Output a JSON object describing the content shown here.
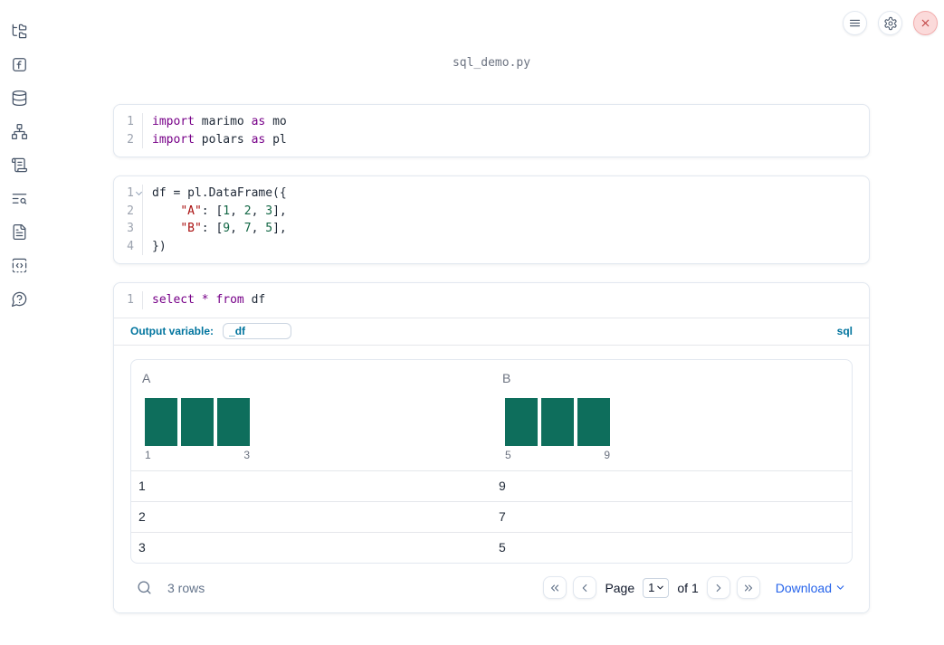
{
  "app": {
    "title": "sql_demo.py"
  },
  "topbar": {
    "buttons": [
      {
        "icon": "menu-icon"
      },
      {
        "icon": "settings-gear-icon"
      },
      {
        "icon": "close-icon"
      }
    ]
  },
  "sidebar": {
    "items": [
      {
        "icon": "file-tree-icon"
      },
      {
        "icon": "functions-icon"
      },
      {
        "icon": "database-icon"
      },
      {
        "icon": "dependency-graph-icon"
      },
      {
        "icon": "logs-scroll-icon"
      },
      {
        "icon": "text-search-icon"
      },
      {
        "icon": "document-icon"
      },
      {
        "icon": "snippets-code-icon"
      },
      {
        "icon": "help-icon"
      }
    ]
  },
  "cells": [
    {
      "id": "cell-imports",
      "lines": [
        {
          "num": "1",
          "tokens": [
            {
              "t": "kw",
              "v": "import"
            },
            {
              "t": "pl",
              "v": " marimo "
            },
            {
              "t": "kw",
              "v": "as"
            },
            {
              "t": "pl",
              "v": " mo"
            }
          ]
        },
        {
          "num": "2",
          "tokens": [
            {
              "t": "kw",
              "v": "import"
            },
            {
              "t": "pl",
              "v": " polars "
            },
            {
              "t": "kw",
              "v": "as"
            },
            {
              "t": "pl",
              "v": " pl"
            }
          ]
        }
      ]
    },
    {
      "id": "cell-dataframe",
      "lines": [
        {
          "num": "1",
          "fold": true,
          "tokens": [
            {
              "t": "pl",
              "v": "df = pl.DataFrame({"
            }
          ]
        },
        {
          "num": "2",
          "tokens": [
            {
              "t": "pl",
              "v": "    "
            },
            {
              "t": "str",
              "v": "\"A\""
            },
            {
              "t": "pl",
              "v": ": ["
            },
            {
              "t": "num",
              "v": "1"
            },
            {
              "t": "pl",
              "v": ", "
            },
            {
              "t": "num",
              "v": "2"
            },
            {
              "t": "pl",
              "v": ", "
            },
            {
              "t": "num",
              "v": "3"
            },
            {
              "t": "pl",
              "v": "],"
            }
          ]
        },
        {
          "num": "3",
          "tokens": [
            {
              "t": "pl",
              "v": "    "
            },
            {
              "t": "str",
              "v": "\"B\""
            },
            {
              "t": "pl",
              "v": ": ["
            },
            {
              "t": "num",
              "v": "9"
            },
            {
              "t": "pl",
              "v": ", "
            },
            {
              "t": "num",
              "v": "7"
            },
            {
              "t": "pl",
              "v": ", "
            },
            {
              "t": "num",
              "v": "5"
            },
            {
              "t": "pl",
              "v": "],"
            }
          ]
        },
        {
          "num": "4",
          "tokens": [
            {
              "t": "pl",
              "v": "})"
            }
          ]
        }
      ]
    },
    {
      "id": "cell-sql",
      "lines": [
        {
          "num": "1",
          "tokens": [
            {
              "t": "kw",
              "v": "select"
            },
            {
              "t": "pl",
              "v": " "
            },
            {
              "t": "kw",
              "v": "*"
            },
            {
              "t": "pl",
              "v": " "
            },
            {
              "t": "kw",
              "v": "from"
            },
            {
              "t": "pl",
              "v": " df"
            }
          ]
        }
      ],
      "meta": {
        "output_variable_label": "Output variable:",
        "output_variable_value": "_df",
        "language_badge": "sql"
      }
    }
  ],
  "table": {
    "columns": [
      {
        "header": "A",
        "hist": {
          "bin_counts": [
            1,
            1,
            1
          ],
          "x_min_label": "1",
          "x_max_label": "3"
        }
      },
      {
        "header": "B",
        "hist": {
          "bin_counts": [
            1,
            1,
            1
          ],
          "x_min_label": "5",
          "x_max_label": "9"
        }
      }
    ],
    "rows": [
      [
        "1",
        "9"
      ],
      [
        "2",
        "7"
      ],
      [
        "3",
        "5"
      ]
    ],
    "row_count_label": "3 rows",
    "pagination": {
      "page_label": "Page",
      "page_value": "1",
      "of_label": "of 1"
    },
    "download_label": "Download"
  },
  "colors": {
    "keyword": "#770088",
    "string": "#aa1111",
    "number": "#116644",
    "histogram_bar": "#0e6e5c",
    "sql_accent": "#00749e",
    "link": "#2563eb",
    "close_red": "#bf4040"
  }
}
